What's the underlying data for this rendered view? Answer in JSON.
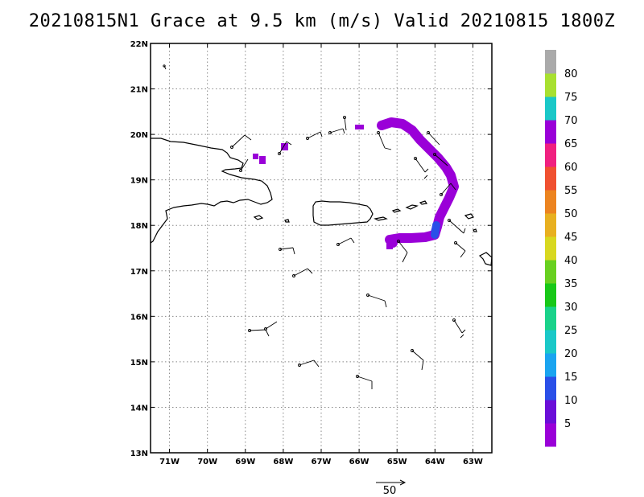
{
  "title": "20210815N1 Grace at 9.5 km (m/s) Valid 20210815 1800Z",
  "map": {
    "lon_range": [
      -71.5,
      -62.5
    ],
    "lat_range": [
      13,
      22
    ],
    "lon_ticks": [
      {
        "v": -71,
        "label": "71W"
      },
      {
        "v": -70,
        "label": "70W"
      },
      {
        "v": -69,
        "label": "69W"
      },
      {
        "v": -68,
        "label": "68W"
      },
      {
        "v": -67,
        "label": "67W"
      },
      {
        "v": -66,
        "label": "66W"
      },
      {
        "v": -65,
        "label": "65W"
      },
      {
        "v": -64,
        "label": "64W"
      },
      {
        "v": -63,
        "label": "63W"
      }
    ],
    "lat_ticks": [
      {
        "v": 13,
        "label": "13N"
      },
      {
        "v": 14,
        "label": "14N"
      },
      {
        "v": 15,
        "label": "15N"
      },
      {
        "v": 16,
        "label": "16N"
      },
      {
        "v": 17,
        "label": "17N"
      },
      {
        "v": 18,
        "label": "18N"
      },
      {
        "v": 19,
        "label": "19N"
      },
      {
        "v": 20,
        "label": "20N"
      },
      {
        "v": 21,
        "label": "21N"
      },
      {
        "v": 22,
        "label": "22N"
      }
    ],
    "grid": true
  },
  "colorbar": {
    "labels": [
      "5",
      "10",
      "15",
      "20",
      "25",
      "30",
      "35",
      "40",
      "45",
      "50",
      "55",
      "60",
      "65",
      "70",
      "75",
      "80"
    ],
    "colors": [
      "#9a00d8",
      "#6a0ed8",
      "#2a4fe8",
      "#1aa4f0",
      "#1ac8c8",
      "#1ad28a",
      "#18c818",
      "#68d020",
      "#d8d820",
      "#e8b020",
      "#ec8420",
      "#f05030",
      "#f02080",
      "#9a00d8",
      "#1ac8c8",
      "#a8e030",
      "#aaaaaa"
    ]
  },
  "reference_vector": {
    "label": "50"
  }
}
